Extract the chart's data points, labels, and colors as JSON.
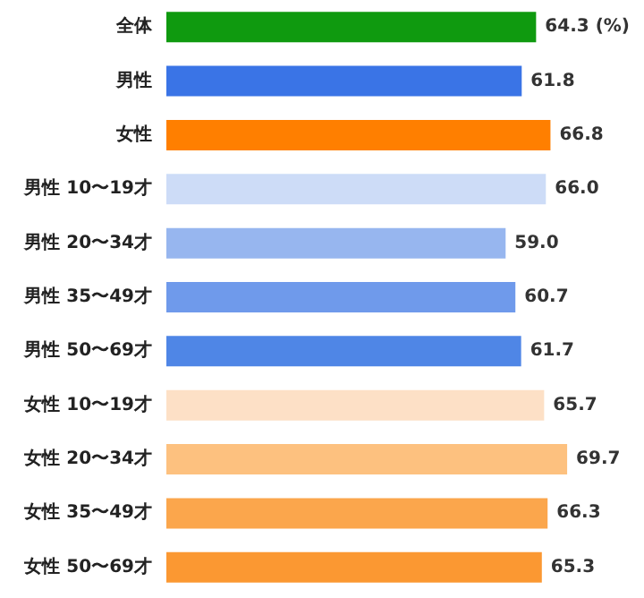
{
  "chart_data": {
    "type": "bar",
    "orientation": "horizontal",
    "categories": [
      "全体",
      "男性",
      "女性",
      "男性 10〜19才",
      "男性 20〜34才",
      "男性 35〜49才",
      "男性 50〜69才",
      "女性 10〜19才",
      "女性 20〜34才",
      "女性 35〜49才",
      "女性 50〜69才"
    ],
    "values": [
      64.3,
      61.8,
      66.8,
      66.0,
      59.0,
      60.7,
      61.7,
      65.7,
      69.7,
      66.3,
      65.3
    ],
    "value_labels": [
      "64.3 (%)",
      "61.8",
      "66.8",
      "66.0",
      "59.0",
      "60.7",
      "61.7",
      "65.7",
      "69.7",
      "66.3",
      "65.3"
    ],
    "colors": [
      "#0f9a0f",
      "#3a74e6",
      "#ff7f00",
      "#cddcf7",
      "#97b6ef",
      "#6f9aeb",
      "#4f86e6",
      "#fde0c6",
      "#fdc17f",
      "#fba64c",
      "#fb9832"
    ],
    "tick_labels": false,
    "grid": false
  }
}
